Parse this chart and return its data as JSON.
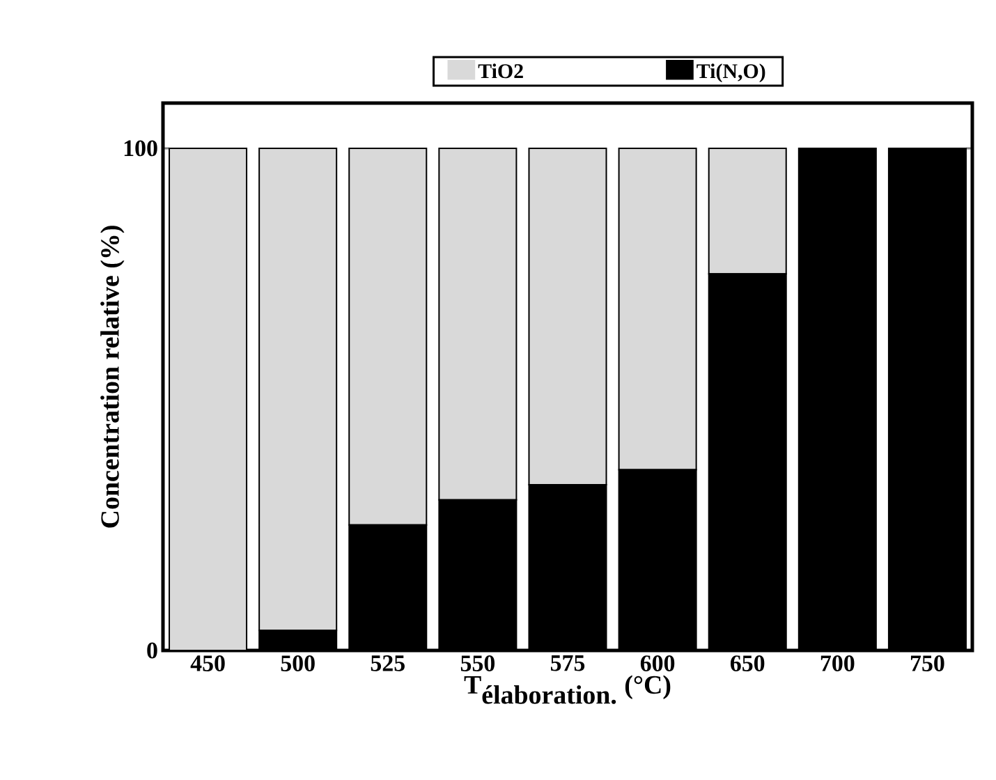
{
  "chart_data": {
    "type": "bar",
    "stacked": true,
    "xlabel": "\\textbf{T}_{\\textbf{élaboration.}}\\ \\textbf{(°C)}",
    "ylabel": "Concentration relative (%)",
    "categories": [
      "450",
      "500",
      "525",
      "550",
      "575",
      "600",
      "650",
      "700",
      "750"
    ],
    "series": [
      {
        "name": "Ti(N,O)",
        "color": "#000000",
        "values": [
          0,
          4,
          25,
          30,
          33,
          36,
          75,
          100,
          100
        ]
      },
      {
        "name": "TiO2",
        "color": "#d9d9d9",
        "values": [
          100,
          96,
          75,
          70,
          67,
          64,
          25,
          0,
          0
        ]
      }
    ],
    "ylim": [
      0,
      109
    ],
    "yticks": [
      0,
      100
    ],
    "legend": "top"
  }
}
